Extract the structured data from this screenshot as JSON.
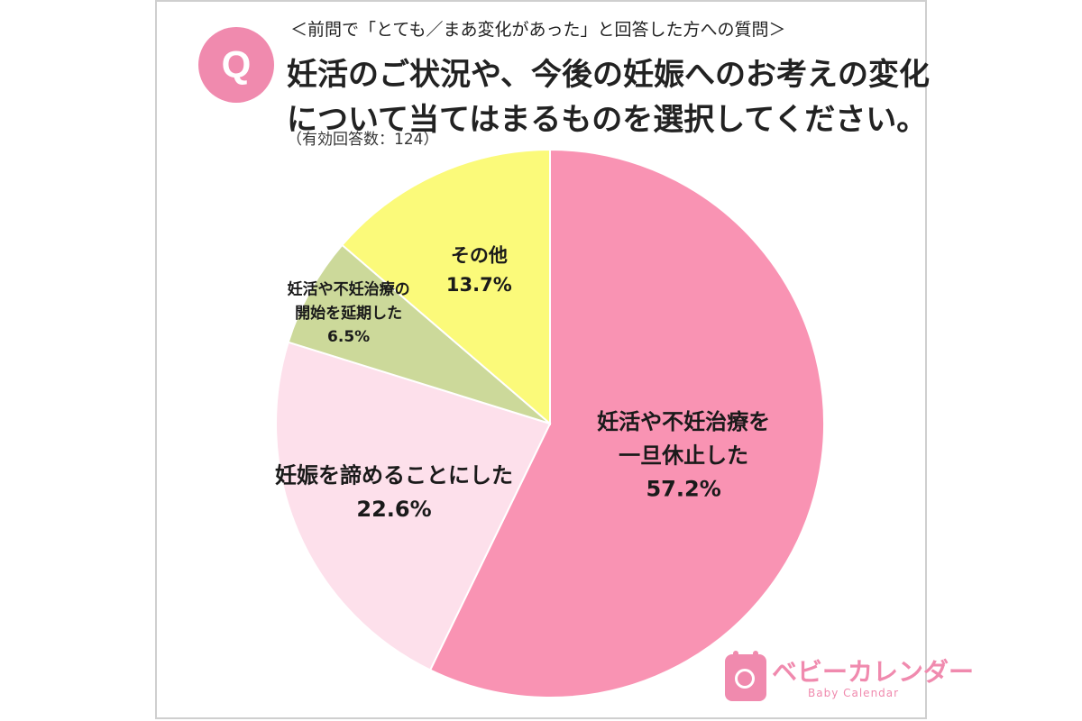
{
  "question": {
    "badge": "Q",
    "pre_text": "＜前問で「とても／まあ変化があった」と回答した方への質問＞",
    "line1": "妊活のご状況や、今後の妊娠へのお考えの変化",
    "line2": "について当てはまるものを選択してください。",
    "answer_count": "（有効回答数：124）"
  },
  "chart_data": {
    "type": "pie",
    "title": "",
    "start_angle_deg": 0,
    "direction": "clockwise",
    "slices": [
      {
        "label_lines": [
          "妊活や不妊治療を",
          "一旦休止した"
        ],
        "value": 57.2,
        "value_text": "57.2%",
        "color": "#f993b3"
      },
      {
        "label_lines": [
          "妊娠を諦めることにした"
        ],
        "value": 22.6,
        "value_text": "22.6%",
        "color": "#fde0eb"
      },
      {
        "label_lines": [
          "妊活や不妊治療の",
          "開始を延期した"
        ],
        "value": 6.5,
        "value_text": "6.5%",
        "color": "#ccd99a"
      },
      {
        "label_lines": [
          "その他"
        ],
        "value": 13.7,
        "value_text": "13.7%",
        "color": "#fbfa7a"
      }
    ]
  },
  "logo": {
    "name": "ベビーカレンダー",
    "sub": "Baby Calendar",
    "icon": "calendar-baby-icon",
    "color": "#f08aae"
  }
}
